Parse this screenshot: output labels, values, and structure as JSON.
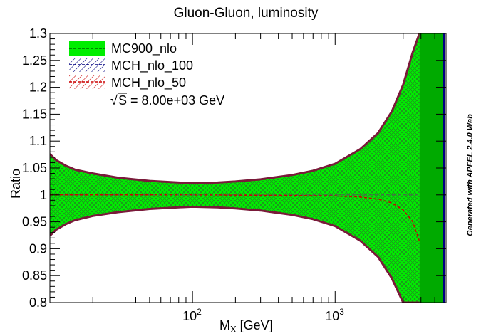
{
  "chart_data": {
    "type": "area",
    "title": "Gluon-Gluon, luminosity",
    "xlabel_main": "M",
    "xlabel_sub": "X",
    "xlabel_unit": " [GeV]",
    "ylabel": "Ratio",
    "xscale": "log",
    "xlim": [
      10,
      6000
    ],
    "ylim": [
      0.8,
      1.3
    ],
    "yticks": [
      0.8,
      0.85,
      0.9,
      0.95,
      1,
      1.05,
      1.1,
      1.15,
      1.2,
      1.25,
      1.3
    ],
    "ytick_labels": [
      "0.8",
      "0.85",
      "0.9",
      "0.95",
      "1",
      "1.05",
      "1.1",
      "1.15",
      "1.2",
      "1.25",
      "1.3"
    ],
    "xticks_major": [
      {
        "value": 100,
        "base": "10",
        "exp": "2"
      },
      {
        "value": 1000,
        "base": "10",
        "exp": "3"
      }
    ],
    "legend_position": "top-left",
    "annotation": {
      "sqrt_symbol": "√",
      "text": "S = 8.00e+03 GeV"
    },
    "colors": {
      "band_fill": "#00ee00",
      "hatch_dark": "#1a4f1a",
      "ref_line": "#006400",
      "series2": "#000080",
      "series3": "#cc0000"
    },
    "series": [
      {
        "name": "MC900_nlo",
        "style": "filled-green",
        "x": [
          10,
          11,
          13,
          15,
          20,
          30,
          50,
          80,
          100,
          150,
          200,
          300,
          500,
          700,
          1000,
          1500,
          2000,
          2500,
          3000,
          3500,
          3900
        ],
        "upper": [
          1.076,
          1.065,
          1.054,
          1.047,
          1.04,
          1.032,
          1.026,
          1.023,
          1.022,
          1.023,
          1.025,
          1.029,
          1.037,
          1.045,
          1.058,
          1.085,
          1.115,
          1.155,
          1.205,
          1.265,
          1.3
        ],
        "central": [
          1,
          1,
          1,
          1,
          1,
          1,
          1,
          1,
          1,
          1,
          1,
          1,
          1,
          1,
          1,
          1,
          1,
          1,
          1,
          1,
          1
        ],
        "lower": [
          0.924,
          0.935,
          0.946,
          0.953,
          0.961,
          0.968,
          0.974,
          0.977,
          0.978,
          0.977,
          0.975,
          0.971,
          0.963,
          0.955,
          0.942,
          0.915,
          0.885,
          0.845,
          0.8,
          0.8,
          0.8
        ]
      },
      {
        "name": "MCH_nlo_100",
        "style": "hatched-blue"
      },
      {
        "name": "MCH_nlo_50",
        "style": "hatched-red",
        "x": [
          10,
          100,
          500,
          1000,
          1500,
          2000,
          2500,
          3000,
          3500,
          4000,
          4300,
          4500,
          4700
        ],
        "central": [
          1,
          1,
          0.999,
          0.998,
          0.996,
          0.992,
          0.985,
          0.972,
          0.95,
          0.905,
          0.86,
          0.82,
          0.8
        ]
      }
    ]
  },
  "footer": {
    "text": "Generated with APFEL 2.4.0 Web"
  }
}
